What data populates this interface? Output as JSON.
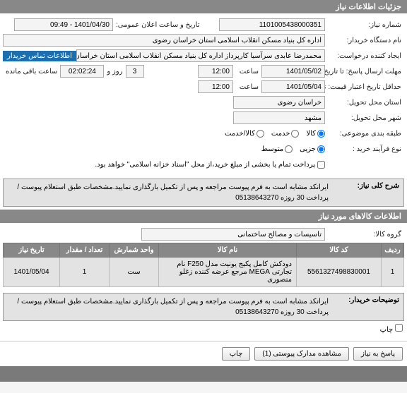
{
  "sections": {
    "details": "جزئیات اطلاعات نیاز",
    "items": "اطلاعات کالاهای مورد نیاز"
  },
  "labels": {
    "need_no": "شماره نیاز:",
    "announce_dt": "تاریخ و ساعت اعلان عمومی:",
    "buyer_org": "نام دستگاه خریدار:",
    "creator_req": "ایجاد کننده درخواست:",
    "contact_seller": "اطلاعات تماس خریدار",
    "send_deadline": "مهلت ارسال پاسخ: تا تاریخ:",
    "saat": "ساعت",
    "time_remain_days": "روز و",
    "time_remain_hours": "ساعت باقی مانده",
    "validity_to": "حداقل تاریخ اعتبار قیمت: تا تاریخ:",
    "province": "استان محل تحویل:",
    "city": "شهر محل تحویل:",
    "category": "طبقه بندی موضوعی:",
    "buy_process": "نوع فرآیند خرید :",
    "payment_note": "پرداخت تمام یا بخشی از مبلغ خرید،از محل \"اسناد خزانه اسلامی\" خواهد بود.",
    "need_desc": "شرح کلی نیاز:",
    "item_group": "گروه کالا:",
    "buyer_note": "توضیحات خریدار:",
    "print": "چاپ"
  },
  "values": {
    "need_no": "1101005438000351",
    "announce_dt": "1401/04/30 - 09:49",
    "buyer_org": "اداره کل بنیاد مسکن انقلاب اسلامی استان خراسان رضوی",
    "creator_req": "محمدرضا عابدی سرآسیا کارپرداز اداره کل بنیاد مسکن انقلاب اسلامی استان خراسان",
    "deadline_date": "1401/05/02",
    "deadline_time": "12:00",
    "remain_days": "3",
    "remain_time": "02:02:24",
    "validity_date": "1401/05/04",
    "validity_time": "12:00",
    "province": "خراسان رضوی",
    "city": "مشهد",
    "need_desc": "ایرانکد مشابه است به فرم پیوست مراجعه و پس از تکمیل بارگذاری نمایید.مشخصات طبق استعلام پیوست / پرداخت 30 روزه 05138643270",
    "item_group": "تاسیسات و مصالح ساختمانی",
    "buyer_note": "ایرانکد مشابه است به فرم پیوست مراجعه و پس از تکمیل بارگذاری نمایید.مشخصات طبق استعلام پیوست / پرداخت 30 روزه 05138643270"
  },
  "category_opts": [
    {
      "label": "کالا",
      "checked": true
    },
    {
      "label": "خدمت",
      "checked": false
    },
    {
      "label": "کالا/خدمت",
      "checked": false
    }
  ],
  "process_opts": [
    {
      "label": "جزیی",
      "checked": true
    },
    {
      "label": "متوسط",
      "checked": false
    }
  ],
  "table": {
    "cols": [
      "ردیف",
      "کد کالا",
      "نام کالا",
      "واحد شمارش",
      "تعداد / مقدار",
      "تاریخ نیاز"
    ],
    "row": {
      "idx": "1",
      "code": "5561327498830001",
      "name": "دودکش کامل پکیج یونیت مدل F250 نام تجارتی MEGA مرجع عرضه کننده زغلو منصوری",
      "unit": "ست",
      "qty": "1",
      "date": "1401/05/04"
    }
  },
  "buttons": {
    "reply": "پاسخ به نیاز",
    "attachments": "مشاهده مدارک پیوستی (1)",
    "print": "چاپ"
  },
  "colors": {
    "header_bg": "#888888",
    "field_bg": "#f4f4f4",
    "accent": "#1a6fb0",
    "row_bg": "#e3e3e3"
  }
}
